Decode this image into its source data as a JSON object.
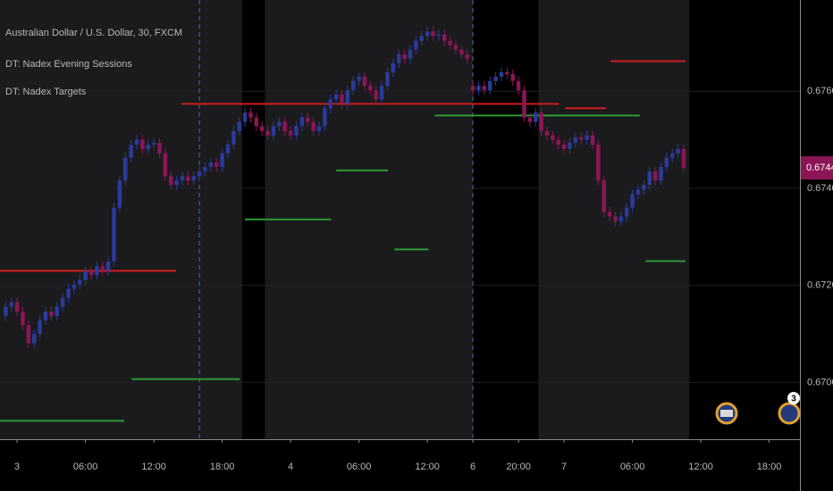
{
  "chart_data": {
    "type": "candlestick",
    "title": "Australian Dollar / U.S. Dollar, 30, FXCM",
    "up_color": "#2a3b9c",
    "down_color": "#8c1655",
    "open": [
      0.67137,
      0.67156,
      0.67165,
      0.67146,
      0.67118,
      0.67081,
      0.671,
      0.67128,
      0.67146,
      0.67137,
      0.67156,
      0.67174,
      0.67193,
      0.67202,
      0.67211,
      0.6723,
      0.67221,
      0.67239,
      0.6723,
      0.67249,
      0.6736,
      0.67416,
      0.67463,
      0.6749,
      0.675,
      0.67481,
      0.6749,
      0.67494,
      0.67472,
      0.67425,
      0.67407,
      0.67416,
      0.67425,
      0.67416,
      0.67425,
      0.67435,
      0.67444,
      0.67453,
      0.67444,
      0.67472,
      0.6749,
      0.67518,
      0.67537,
      0.67556,
      0.67546,
      0.67528,
      0.67518,
      0.67509,
      0.67528,
      0.67537,
      0.67518,
      0.67509,
      0.67528,
      0.67546,
      0.67537,
      0.67518,
      0.67528,
      0.67565,
      0.67583,
      0.67593,
      0.67574,
      0.67602,
      0.67621,
      0.6763,
      0.67611,
      0.67602,
      0.67583,
      0.67611,
      0.67639,
      0.67658,
      0.67676,
      0.67667,
      0.67686,
      0.67704,
      0.67714,
      0.67723,
      0.67714,
      0.67717,
      0.67704,
      0.67695,
      0.67686,
      0.67676,
      0.67611,
      0.67602,
      0.67611,
      0.67602,
      0.67621,
      0.6763,
      0.67639,
      0.67635,
      0.67621,
      0.67602,
      0.67546,
      0.67537,
      0.67556,
      0.67518,
      0.67509,
      0.675,
      0.6749,
      0.67481,
      0.67494,
      0.67505,
      0.675,
      0.67509,
      0.6749,
      0.67416,
      0.67351,
      0.67342,
      0.67332,
      0.67342,
      0.6736,
      0.67388,
      0.67397,
      0.67407,
      0.67435,
      0.67416,
      0.67444,
      0.67463,
      0.67472,
      0.67481
    ],
    "high": [
      0.67166,
      0.67175,
      0.67175,
      0.67156,
      0.67128,
      0.6711,
      0.67138,
      0.67156,
      0.67156,
      0.67166,
      0.67184,
      0.67203,
      0.67212,
      0.67221,
      0.6724,
      0.6724,
      0.67249,
      0.67249,
      0.67259,
      0.6737,
      0.67426,
      0.67473,
      0.675,
      0.6751,
      0.6751,
      0.675,
      0.67504,
      0.67504,
      0.67482,
      0.67435,
      0.67426,
      0.67435,
      0.67435,
      0.67435,
      0.67445,
      0.67454,
      0.67463,
      0.67463,
      0.67482,
      0.675,
      0.67528,
      0.67547,
      0.67566,
      0.67566,
      0.67556,
      0.67538,
      0.67528,
      0.67538,
      0.67547,
      0.67547,
      0.67528,
      0.67538,
      0.67556,
      0.67556,
      0.67547,
      0.67538,
      0.67575,
      0.67593,
      0.67603,
      0.67603,
      0.67612,
      0.67631,
      0.6764,
      0.6764,
      0.67621,
      0.67612,
      0.67621,
      0.67649,
      0.67668,
      0.67686,
      0.67686,
      0.67696,
      0.67714,
      0.67724,
      0.67733,
      0.67733,
      0.67727,
      0.67727,
      0.67714,
      0.67705,
      0.67696,
      0.67686,
      0.67621,
      0.67621,
      0.67621,
      0.67631,
      0.6764,
      0.67649,
      0.67649,
      0.67645,
      0.67631,
      0.67612,
      0.67556,
      0.67566,
      0.67566,
      0.67528,
      0.67519,
      0.6751,
      0.675,
      0.67504,
      0.67515,
      0.67515,
      0.67519,
      0.67519,
      0.675,
      0.67426,
      0.67361,
      0.67352,
      0.67352,
      0.6737,
      0.67398,
      0.67407,
      0.67417,
      0.67445,
      0.67445,
      0.67454,
      0.67473,
      0.67482,
      0.67491,
      0.67491
    ],
    "low": [
      0.67127,
      0.67146,
      0.67136,
      0.67108,
      0.67071,
      0.67071,
      0.6709,
      0.67118,
      0.67127,
      0.67127,
      0.67146,
      0.67164,
      0.67183,
      0.67192,
      0.67201,
      0.67211,
      0.67211,
      0.6722,
      0.6722,
      0.67239,
      0.6735,
      0.67406,
      0.67453,
      0.6748,
      0.67471,
      0.67471,
      0.6748,
      0.67462,
      0.67415,
      0.67397,
      0.67397,
      0.67406,
      0.67406,
      0.67406,
      0.67415,
      0.67425,
      0.67434,
      0.67434,
      0.67434,
      0.67462,
      0.6748,
      0.67508,
      0.67527,
      0.67536,
      0.67518,
      0.67508,
      0.67499,
      0.67499,
      0.67518,
      0.67508,
      0.67499,
      0.67499,
      0.67518,
      0.67527,
      0.67508,
      0.67508,
      0.67518,
      0.67555,
      0.67573,
      0.67564,
      0.67564,
      0.67592,
      0.67611,
      0.67601,
      0.67592,
      0.67573,
      0.67573,
      0.67601,
      0.67629,
      0.67648,
      0.67657,
      0.67657,
      0.67676,
      0.67694,
      0.67704,
      0.67704,
      0.67704,
      0.67694,
      0.67685,
      0.67676,
      0.67666,
      0.67657,
      0.67592,
      0.67592,
      0.67592,
      0.67592,
      0.67611,
      0.6762,
      0.67625,
      0.67611,
      0.67592,
      0.67536,
      0.67527,
      0.67527,
      0.67508,
      0.67499,
      0.6749,
      0.6748,
      0.67471,
      0.67471,
      0.67484,
      0.6749,
      0.6749,
      0.6748,
      0.67406,
      0.67341,
      0.67332,
      0.67322,
      0.67322,
      0.67332,
      0.6735,
      0.67378,
      0.67387,
      0.67397,
      0.67406,
      0.67406,
      0.67434,
      0.67453,
      0.67462,
      0.67432
    ],
    "close": [
      0.67156,
      0.67165,
      0.67146,
      0.67118,
      0.67081,
      0.671,
      0.67128,
      0.67146,
      0.67137,
      0.67156,
      0.67174,
      0.67193,
      0.67202,
      0.67211,
      0.6723,
      0.67221,
      0.67239,
      0.6723,
      0.67249,
      0.6736,
      0.67416,
      0.67463,
      0.6749,
      0.675,
      0.67481,
      0.6749,
      0.67494,
      0.67472,
      0.67425,
      0.67407,
      0.67416,
      0.67425,
      0.67416,
      0.67425,
      0.67435,
      0.67444,
      0.67453,
      0.67444,
      0.67472,
      0.6749,
      0.67518,
      0.67537,
      0.67556,
      0.67546,
      0.67528,
      0.67518,
      0.67509,
      0.67528,
      0.67537,
      0.67518,
      0.67509,
      0.67528,
      0.67546,
      0.67537,
      0.67518,
      0.67528,
      0.67565,
      0.67583,
      0.67593,
      0.67574,
      0.67602,
      0.67621,
      0.6763,
      0.67611,
      0.67602,
      0.67583,
      0.67611,
      0.67639,
      0.67658,
      0.67676,
      0.67667,
      0.67686,
      0.67704,
      0.67714,
      0.67723,
      0.67714,
      0.67717,
      0.67704,
      0.67695,
      0.67686,
      0.67676,
      0.67667,
      0.67602,
      0.67611,
      0.67602,
      0.67621,
      0.6763,
      0.67639,
      0.67635,
      0.67621,
      0.67602,
      0.67546,
      0.67537,
      0.67556,
      0.67518,
      0.67509,
      0.675,
      0.6749,
      0.67481,
      0.67494,
      0.67505,
      0.675,
      0.67509,
      0.6749,
      0.67416,
      0.67351,
      0.67342,
      0.67332,
      0.67342,
      0.6736,
      0.67388,
      0.67397,
      0.67407,
      0.67435,
      0.67416,
      0.67444,
      0.67463,
      0.67472,
      0.67481,
      0.67442
    ],
    "xlim": [
      -1,
      139.4
    ],
    "xticks": [
      {
        "value": 2,
        "label": "3"
      },
      {
        "value": 14,
        "label": "06:00"
      },
      {
        "value": 26,
        "label": "12:00"
      },
      {
        "value": 38,
        "label": "18:00"
      },
      {
        "value": 50,
        "label": "4"
      },
      {
        "value": 62,
        "label": "06:00"
      },
      {
        "value": 74,
        "label": "12:00"
      },
      {
        "value": 82,
        "label": "6"
      },
      {
        "value": 90,
        "label": "20:00"
      },
      {
        "value": 98,
        "label": "7"
      },
      {
        "value": 110,
        "label": "06:00"
      },
      {
        "value": 122,
        "label": "12:00"
      },
      {
        "value": 134,
        "label": "18:00"
      }
    ],
    "ylim": [
      0.66883,
      0.67788
    ],
    "yticks": [
      {
        "value": 0.67,
        "label": "0.67000"
      },
      {
        "value": 0.672,
        "label": "0.67200"
      },
      {
        "value": 0.674,
        "label": "0.67400"
      },
      {
        "value": 0.676,
        "label": "0.67600"
      }
    ],
    "grid": true,
    "separators": [
      34,
      82
    ],
    "sessions": {
      "name": "DT: Nadex Evening Sessions",
      "color": "#1b1b1d",
      "ranges": [
        [
          -1,
          41.5
        ],
        [
          45.5,
          82
        ],
        [
          93.5,
          120
        ]
      ]
    },
    "targets": {
      "name": "DT: Nadex Targets",
      "segments": [
        {
          "start": -1,
          "end": 29.9,
          "value": 0.6723,
          "color": "#d11a1a"
        },
        {
          "start": 30.9,
          "end": 97.1,
          "value": 0.67574,
          "color": "#d11a1a"
        },
        {
          "start": 98.2,
          "end": 105.4,
          "value": 0.67565,
          "color": "#d11a1a"
        },
        {
          "start": 106.2,
          "end": 119.3,
          "value": 0.67662,
          "color": "#d11a1a"
        },
        {
          "start": -1,
          "end": 20.8,
          "value": 0.66921,
          "color": "#2e9a32"
        },
        {
          "start": 22.1,
          "end": 41.1,
          "value": 0.67007,
          "color": "#2e9a32"
        },
        {
          "start": 42,
          "end": 57.1,
          "value": 0.67336,
          "color": "#2e9a32"
        },
        {
          "start": 58,
          "end": 67.1,
          "value": 0.67437,
          "color": "#2e9a32"
        },
        {
          "start": 68.2,
          "end": 74.2,
          "value": 0.67274,
          "color": "#2e9a32"
        },
        {
          "start": 75.3,
          "end": 111.3,
          "value": 0.6755,
          "color": "#2e9a32"
        },
        {
          "start": 112.3,
          "end": 119.3,
          "value": 0.6725,
          "color": "#2e9a32"
        }
      ]
    },
    "event_badge": "3"
  }
}
